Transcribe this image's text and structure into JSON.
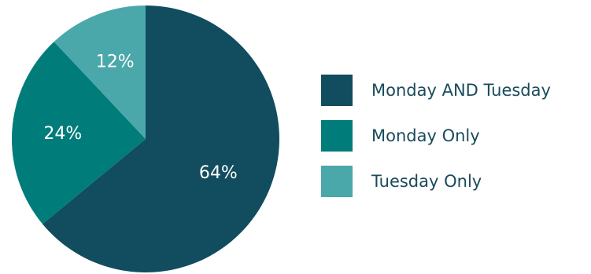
{
  "chart_data": {
    "type": "pie",
    "slices": [
      {
        "label": "Monday AND Tuesday",
        "value": 64,
        "value_label": "64%",
        "color": "#124c5f"
      },
      {
        "label": "Monday Only",
        "value": 24,
        "value_label": "24%",
        "color": "#007c7a"
      },
      {
        "label": "Tuesday Only",
        "value": 12,
        "value_label": "12%",
        "color": "#4aa8ab"
      }
    ],
    "legend_placement": "right",
    "start_angle": "top (12 o'clock), clockwise"
  }
}
